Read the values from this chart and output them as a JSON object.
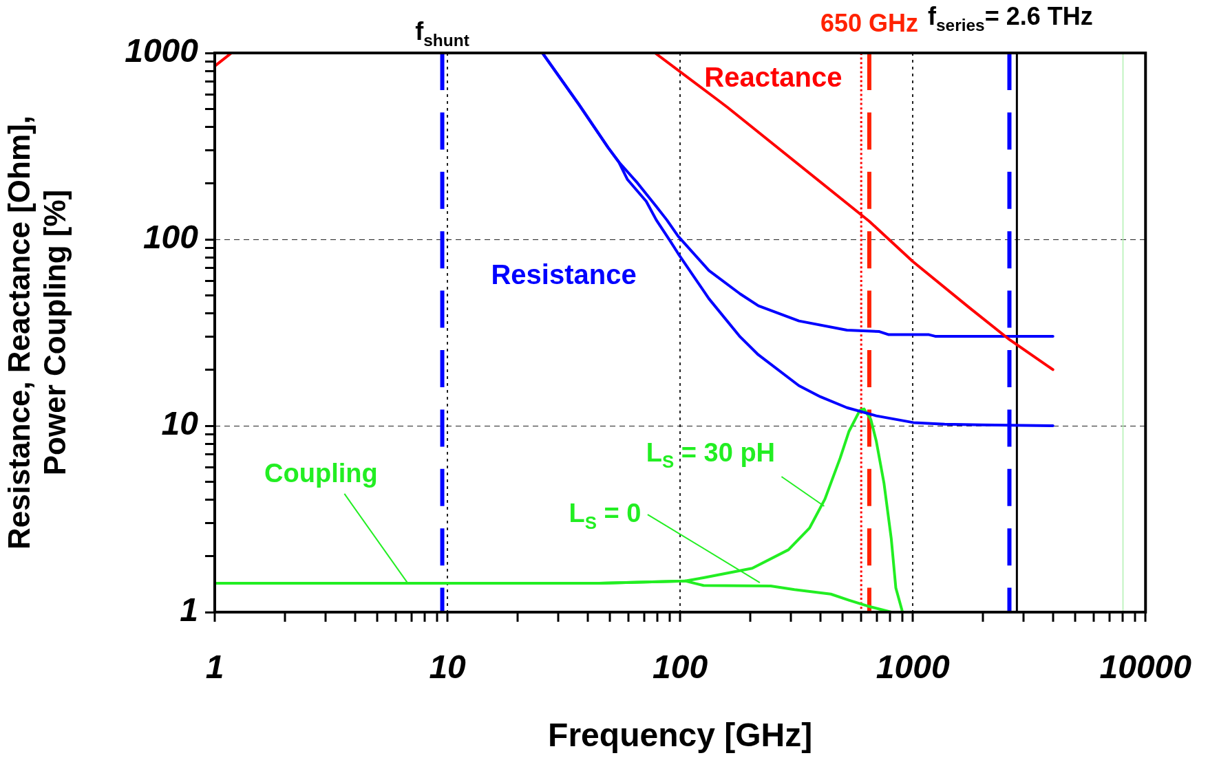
{
  "chart_data": {
    "type": "line",
    "xlabel": "Frequency [GHz]",
    "ylabel": "Resistance, Reactance [Ohm],\nPower Coupling [%]",
    "log": "xy",
    "grid": true,
    "legend": false,
    "line_style": "solid",
    "marker": "none",
    "xlim": [
      1,
      10000
    ],
    "ylim": [
      1,
      1000
    ],
    "xticks": [
      1,
      {
        "value": 2,
        "label": null
      },
      {
        "value": 3,
        "label": null
      },
      {
        "value": 4,
        "label": null
      },
      {
        "value": 5,
        "label": null
      },
      {
        "value": 6,
        "label": null
      },
      {
        "value": 7,
        "label": null
      },
      {
        "value": 8,
        "label": null
      },
      {
        "value": 9,
        "label": null
      },
      10,
      {
        "value": 20,
        "label": null
      },
      {
        "value": 30,
        "label": null
      },
      {
        "value": 40,
        "label": null
      },
      {
        "value": 50,
        "label": null
      },
      {
        "value": 60,
        "label": null
      },
      {
        "value": 70,
        "label": null
      },
      {
        "value": 80,
        "label": null
      },
      {
        "value": 90,
        "label": null
      },
      100,
      {
        "value": 200,
        "label": null
      },
      {
        "value": 300,
        "label": null
      },
      {
        "value": 400,
        "label": null
      },
      {
        "value": 500,
        "label": null
      },
      {
        "value": 600,
        "label": null
      },
      {
        "value": 700,
        "label": null
      },
      {
        "value": 800,
        "label": null
      },
      {
        "value": 900,
        "label": null
      },
      1000,
      {
        "value": 2000,
        "label": null
      },
      {
        "value": 3000,
        "label": null
      },
      {
        "value": 4000,
        "label": null
      },
      {
        "value": 5000,
        "label": null
      },
      {
        "value": 6000,
        "label": null
      },
      {
        "value": 7000,
        "label": null
      },
      {
        "value": 8000,
        "label": null
      },
      {
        "value": 9000,
        "label": null
      },
      10000
    ],
    "yticks": [
      1,
      {
        "value": 2,
        "label": null
      },
      {
        "value": 3,
        "label": null
      },
      {
        "value": 4,
        "label": null
      },
      {
        "value": 5,
        "label": null
      },
      {
        "value": 6,
        "label": null
      },
      {
        "value": 7,
        "label": null
      },
      {
        "value": 8,
        "label": null
      },
      {
        "value": 9,
        "label": null
      },
      10,
      {
        "value": 20,
        "label": null
      },
      {
        "value": 30,
        "label": null
      },
      {
        "value": 40,
        "label": null
      },
      {
        "value": 50,
        "label": null
      },
      {
        "value": 60,
        "label": null
      },
      {
        "value": 70,
        "label": null
      },
      {
        "value": 80,
        "label": null
      },
      {
        "value": 90,
        "label": null
      },
      100,
      {
        "value": 200,
        "label": null
      },
      {
        "value": 300,
        "label": null
      },
      {
        "value": 400,
        "label": null
      },
      {
        "value": 500,
        "label": null
      },
      {
        "value": 600,
        "label": null
      },
      {
        "value": 700,
        "label": null
      },
      {
        "value": 800,
        "label": null
      },
      {
        "value": 900,
        "label": null
      },
      1000
    ],
    "series": [
      {
        "name": "Reactance",
        "color": "#ff0000",
        "x": [
          1,
          1.18,
          5,
          78,
          145,
          160,
          650,
          1000,
          1750,
          2600,
          4000
        ],
        "values": [
          850,
          1000,
          null,
          1000,
          560,
          510,
          125,
          76,
          43,
          29,
          20
        ]
      },
      {
        "name": "Resistance",
        "color": "#0000ff",
        "x": [
          25.6,
          36.7,
          49.1,
          54.5,
          65.7,
          79,
          87.7,
          98,
          133,
          181,
          217,
          324,
          521,
          718,
          788,
          1173,
          1247,
          4000
        ],
        "values": [
          1000,
          530,
          310,
          260,
          200,
          150,
          127,
          104,
          68,
          51,
          44,
          36.5,
          32.6,
          32,
          30.8,
          30.8,
          30.2,
          30.2
        ]
      },
      {
        "color": "#0000ff",
        "x": [
          25.6,
          36.7,
          49.1,
          54.5,
          59.3,
          71.5,
          79,
          90.6,
          98,
          133,
          181,
          217,
          324,
          401,
          521,
          697,
          1006,
          1370,
          1973,
          4000
        ],
        "values": [
          1000,
          530,
          310,
          260,
          210,
          160,
          127,
          98,
          84,
          48,
          30,
          24,
          16.4,
          14.3,
          12.5,
          11.3,
          10.4,
          10.2,
          10.1,
          10
        ]
      },
      {
        "color": "#22ee22",
        "x": [
          1,
          45,
          105,
          126,
          204,
          292,
          360,
          419,
          487,
          531,
          592,
          617,
          660,
          696,
          752,
          808,
          845,
          903
        ],
        "values": [
          1.43,
          1.43,
          1.47,
          1.53,
          1.72,
          2.16,
          2.83,
          4.04,
          6.7,
          9.3,
          12.1,
          12.3,
          10.8,
          8.3,
          4.9,
          2.47,
          1.35,
          1.0
        ]
      },
      {
        "color": "#22ee22",
        "x": [
          1,
          45,
          105,
          126,
          245,
          310,
          444,
          531,
          636,
          808
        ],
        "values": [
          1.43,
          1.43,
          1.47,
          1.39,
          1.38,
          1.32,
          1.25,
          1.16,
          1.08,
          1.0
        ]
      }
    ],
    "ref_lines": [
      {
        "axis": "x",
        "value": 9.5,
        "label": "f$_{shunt}$",
        "color": "#0000ff",
        "line_style": "dashed"
      },
      {
        "axis": "x",
        "value": 600,
        "color": "#ff0000",
        "line_style": "dotted"
      },
      {
        "axis": "x",
        "value": 650,
        "label": "650 GHz",
        "color": "#ff2200",
        "line_style": "dashed"
      },
      {
        "axis": "x",
        "value": 2600,
        "color": "#0000ff",
        "line_style": "dashed"
      },
      {
        "axis": "x",
        "value": 2800,
        "color": "#000000",
        "line_style": "solid"
      },
      {
        "axis": "x",
        "value": 8000,
        "color": "#b0f0b0",
        "line_style": "solid"
      }
    ],
    "annotations": [
      {
        "text": "Coupling",
        "x": 6.75,
        "y": 1.43
      },
      {
        "text": "L$_{S}$ = 30 pH",
        "x": 416,
        "y": 3.7
      },
      {
        "text": "L$_{S}$ = 0",
        "x": 220,
        "y": 1.44
      },
      "f$_{series}$= 2.6 THz"
    ]
  }
}
